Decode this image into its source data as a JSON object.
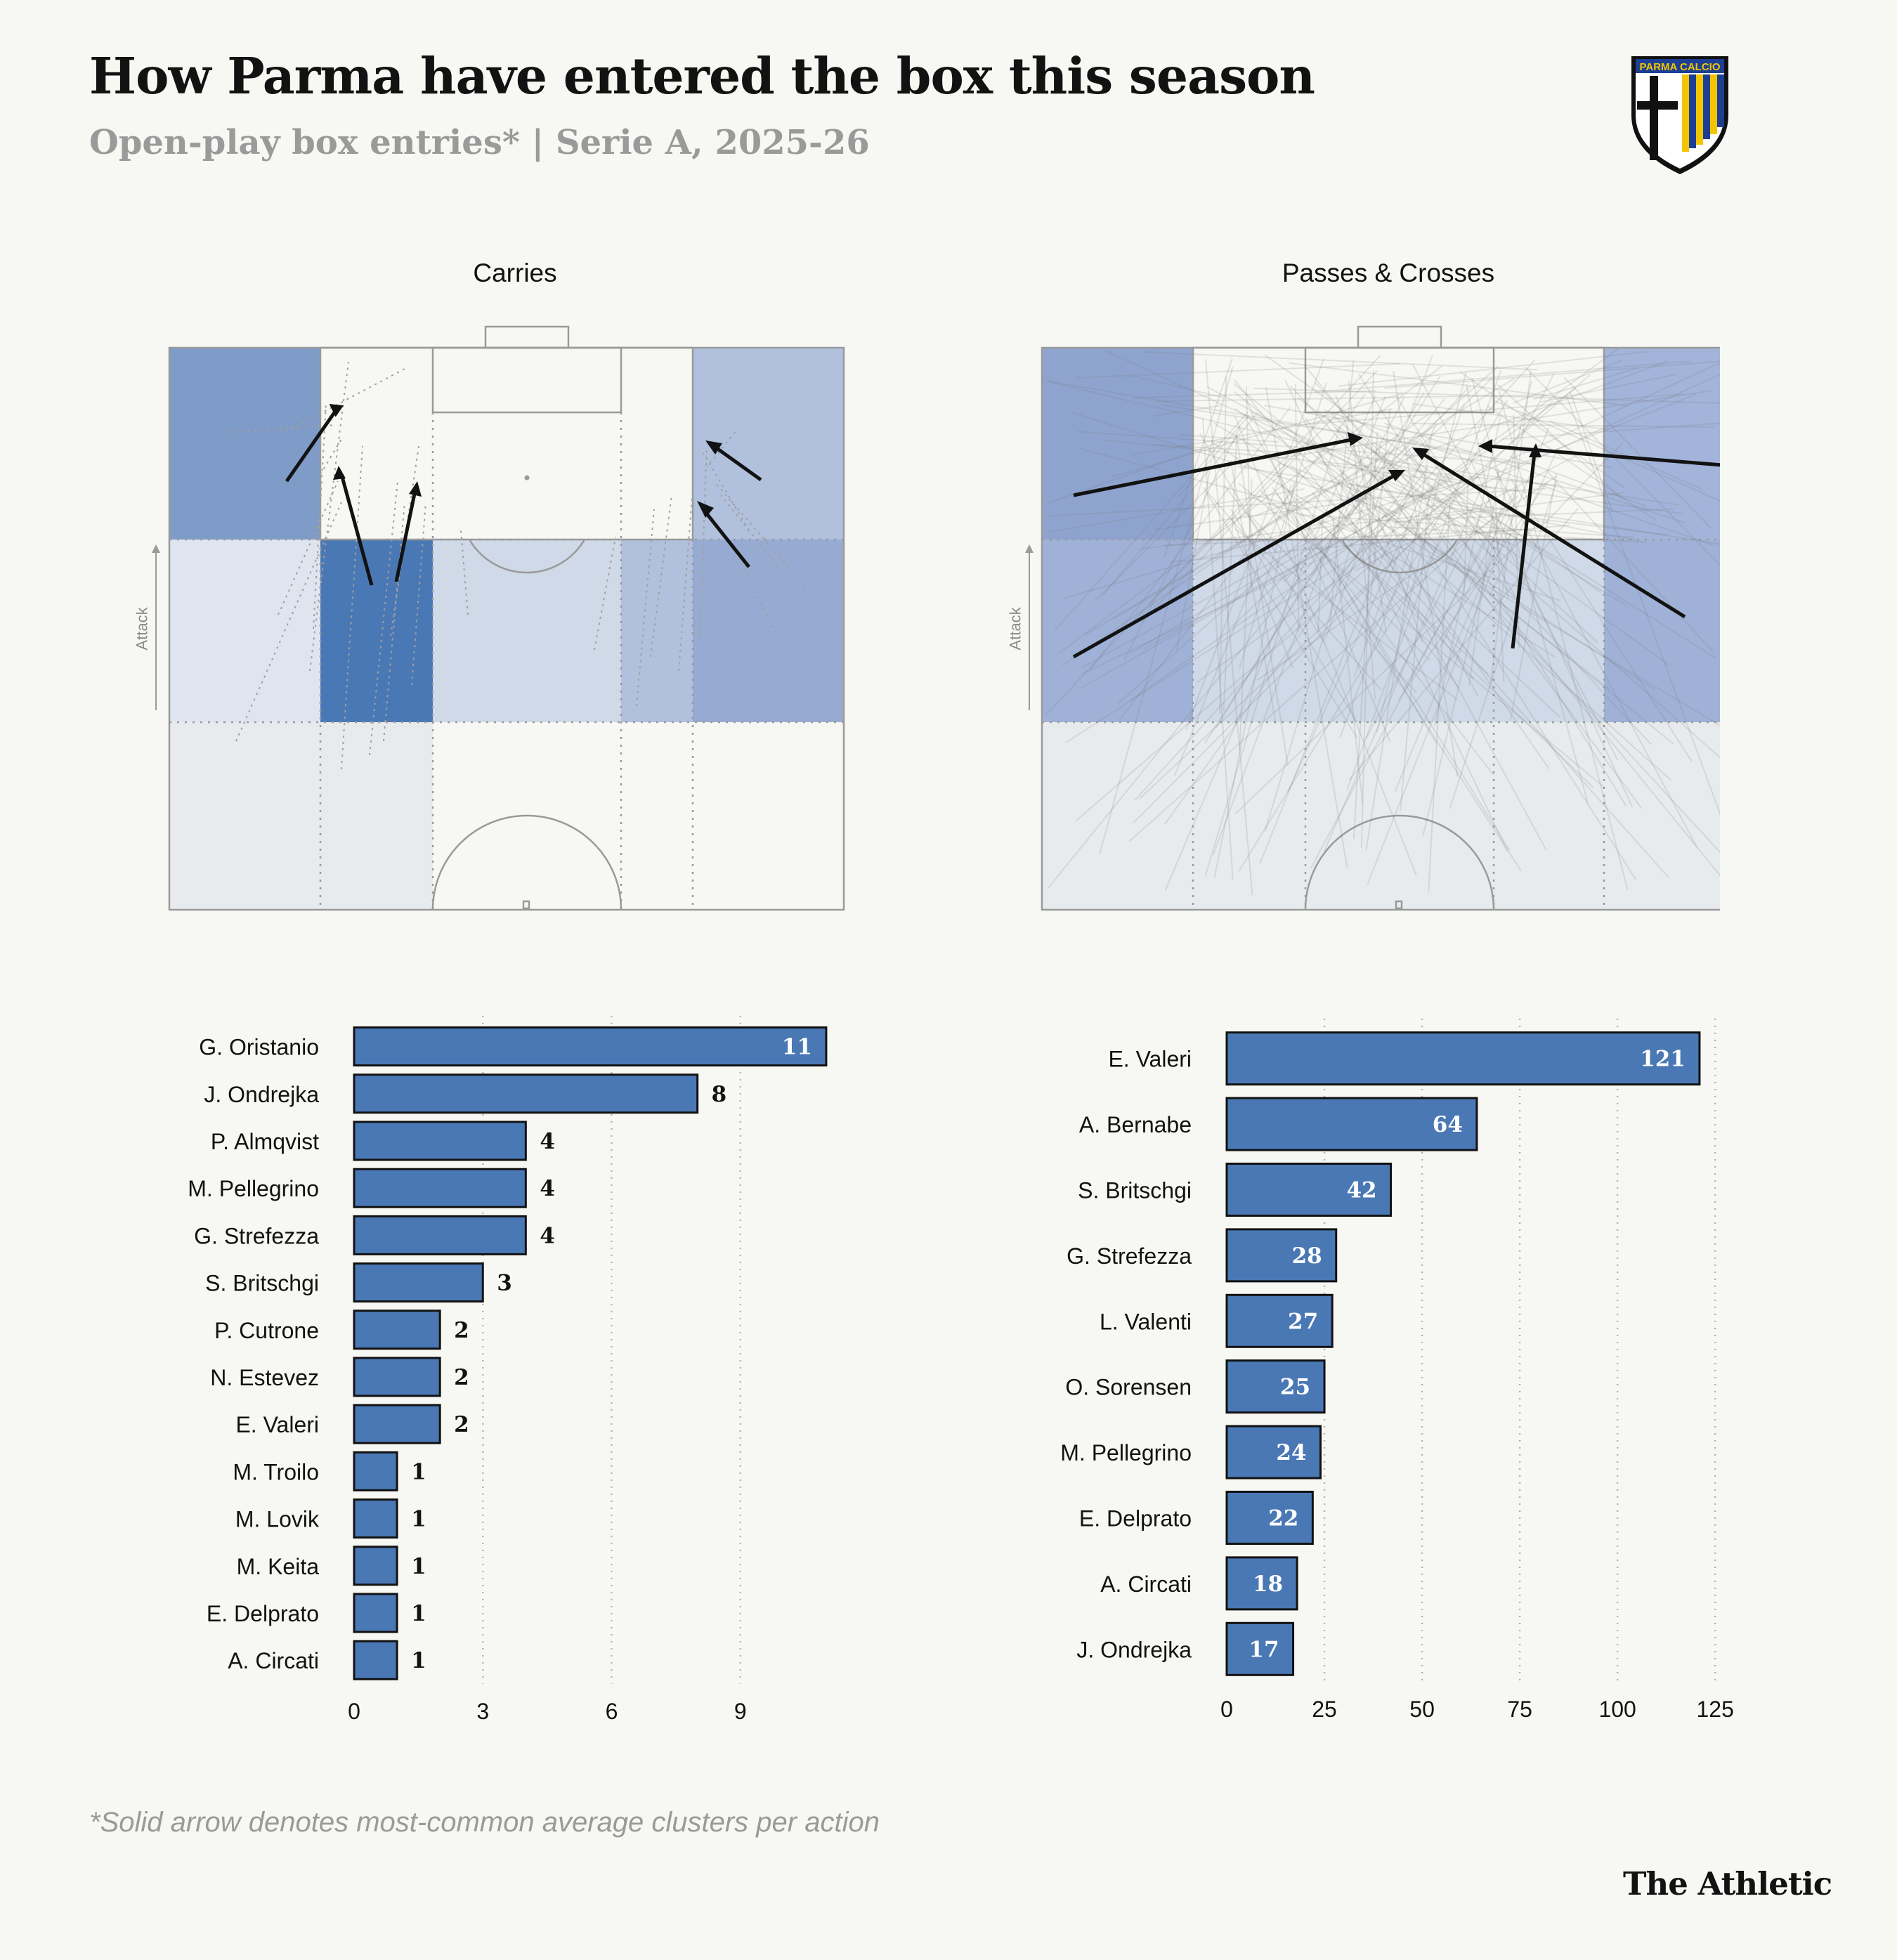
{
  "header": {
    "title": "How Parma have entered the box this season",
    "subtitle": "Open-play box entries* | Serie A, 2025-26"
  },
  "crest": {
    "text": "PARMA CALCIO",
    "colors": {
      "yellow": "#f2c500",
      "blue": "#1c3f94",
      "black": "#111111"
    }
  },
  "panels": {
    "carries": {
      "title": "Carries",
      "attack_label": "Attack"
    },
    "passes": {
      "title": "Passes & Crosses",
      "attack_label": "Attack"
    }
  },
  "colors": {
    "bar": "#4a78b5",
    "zone_dark": "#4a78b5",
    "background": "#f7f7f4"
  },
  "chart_data": [
    {
      "type": "bar",
      "orientation": "horizontal",
      "title": "Carries",
      "categories": [
        "G. Oristanio",
        "J. Ondrejka",
        "P. Almqvist",
        "M. Pellegrino",
        "G. Strefezza",
        "S. Britschgi",
        "P. Cutrone",
        "N. Estevez",
        "E. Valeri",
        "M. Troilo",
        "M. Lovik",
        "M. Keita",
        "E. Delprato",
        "A. Circati"
      ],
      "values": [
        11,
        8,
        4,
        4,
        4,
        3,
        2,
        2,
        2,
        1,
        1,
        1,
        1,
        1
      ],
      "xlim": [
        0,
        12
      ],
      "xticks": [
        0,
        3,
        6,
        9
      ],
      "grid": true
    },
    {
      "type": "bar",
      "orientation": "horizontal",
      "title": "Passes & Crosses",
      "categories": [
        "E. Valeri",
        "A. Bernabe",
        "S. Britschgi",
        "G. Strefezza",
        "L. Valenti",
        "O. Sorensen",
        "M. Pellegrino",
        "E. Delprato",
        "A. Circati",
        "J. Ondrejka"
      ],
      "values": [
        121,
        64,
        42,
        28,
        27,
        25,
        24,
        22,
        18,
        17
      ],
      "xlim": [
        0,
        130
      ],
      "xticks": [
        0,
        25,
        50,
        75,
        100,
        125
      ],
      "grid": true
    }
  ],
  "footnote": "*Solid arrow denotes most-common average clusters per action",
  "brand": "The Athletic"
}
